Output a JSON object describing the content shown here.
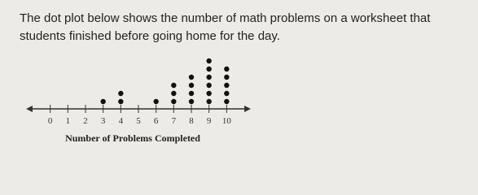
{
  "question": [
    "The dot plot below shows the number of math problems on a worksheet that",
    "students finished before going home for the day."
  ],
  "chart_data": {
    "type": "dot",
    "xlabel": "Number of Problems Completed",
    "x": [
      0,
      1,
      2,
      3,
      4,
      5,
      6,
      7,
      8,
      9,
      10
    ],
    "values": [
      0,
      0,
      0,
      1,
      2,
      0,
      1,
      3,
      4,
      6,
      5
    ],
    "color": "#111111",
    "xlim": [
      -1,
      11
    ],
    "xticks": [
      0,
      1,
      2,
      3,
      4,
      5,
      6,
      7,
      8,
      9,
      10
    ]
  }
}
